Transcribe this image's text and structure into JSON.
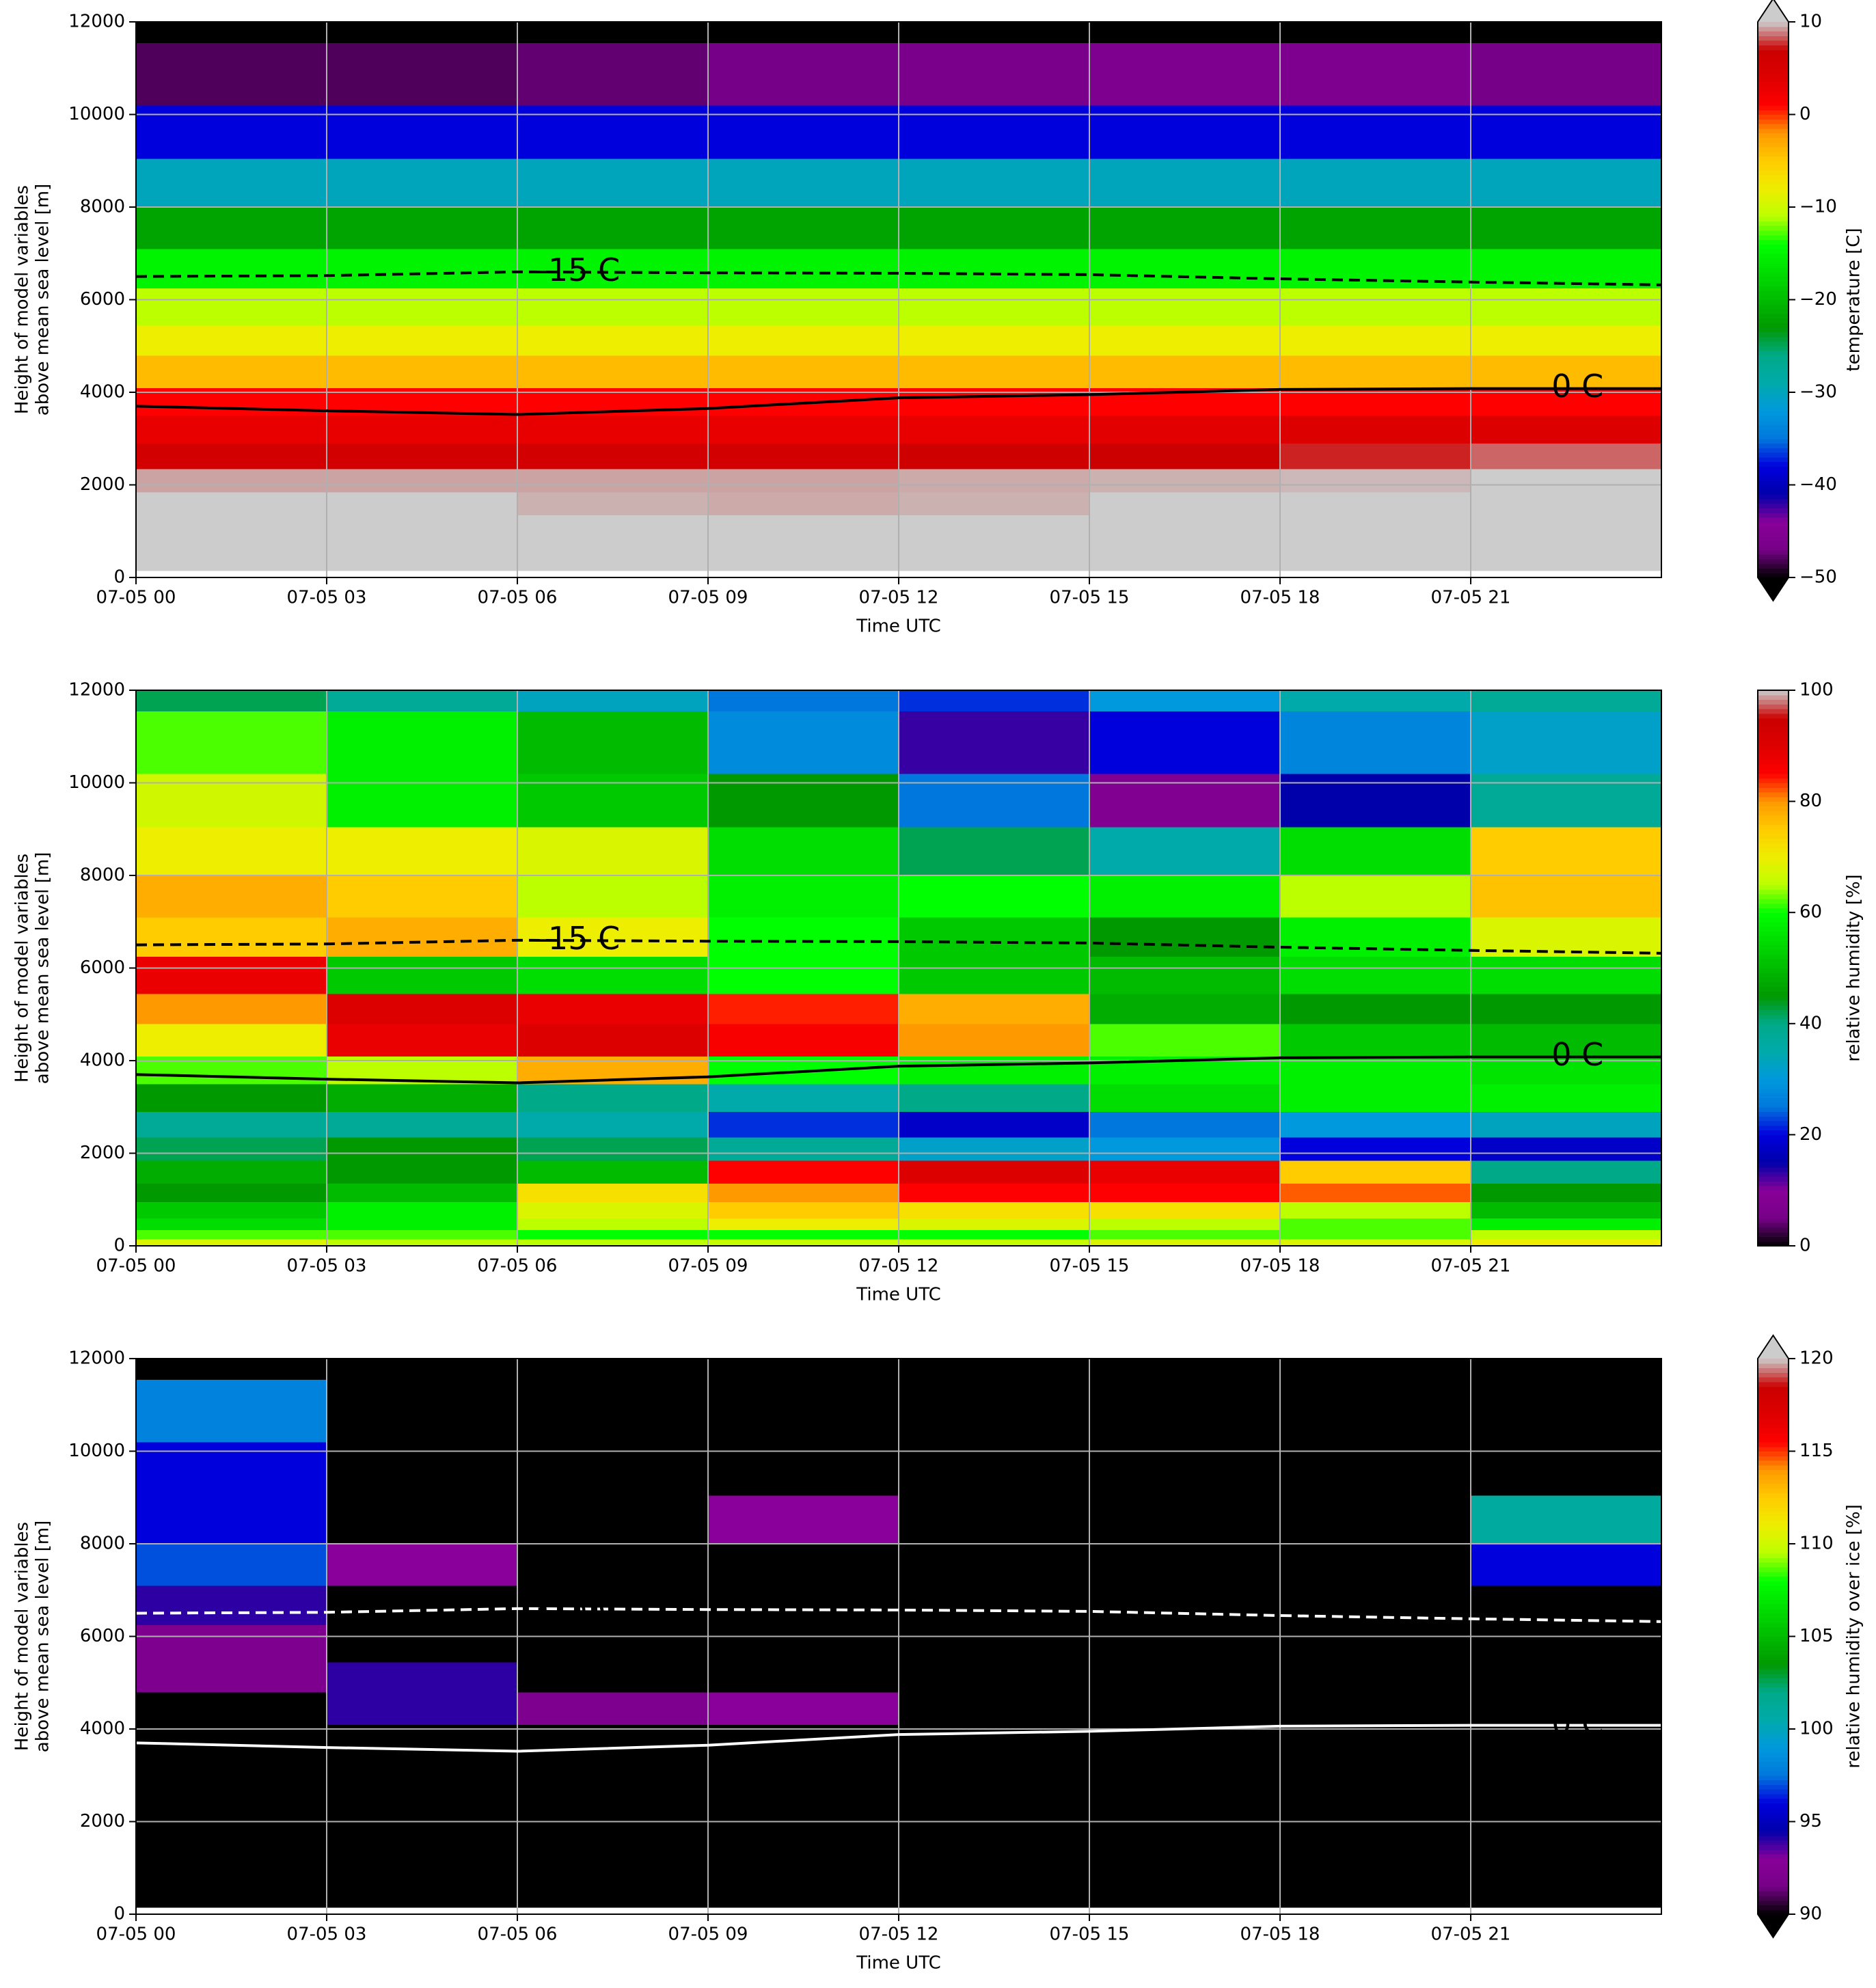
{
  "chart_data": [
    {
      "type": "heatmap",
      "colormap": "nipy_spectral",
      "clim": [
        -50,
        10
      ],
      "extend": "both",
      "over_color": "#cccccc",
      "under_color": "#000000",
      "xlabel": "Time UTC",
      "ylabel": [
        "Height of model variables",
        "above mean sea level [m]"
      ],
      "colorbar_label": "temperature [C]",
      "xlim": [
        0,
        24
      ],
      "ylim": [
        0,
        12000
      ],
      "grid": true,
      "xticks": [
        {
          "value": 0,
          "label": "07-05 00"
        },
        {
          "value": 3,
          "label": "07-05 03"
        },
        {
          "value": 6,
          "label": "07-05 06"
        },
        {
          "value": 9,
          "label": "07-05 09"
        },
        {
          "value": 12,
          "label": "07-05 12"
        },
        {
          "value": 15,
          "label": "07-05 15"
        },
        {
          "value": 18,
          "label": "07-05 18"
        },
        {
          "value": 21,
          "label": "07-05 21"
        }
      ],
      "yticks": [
        0,
        2000,
        4000,
        6000,
        8000,
        10000,
        12000
      ],
      "colorbar_ticks": [
        10,
        0,
        {
          "value": -10,
          "label": "−10"
        },
        {
          "value": -20,
          "label": "−20"
        },
        {
          "value": -30,
          "label": "−30"
        },
        {
          "value": -40,
          "label": "−40"
        },
        {
          "value": -50,
          "label": "−50"
        }
      ],
      "x_edges": [
        0,
        3,
        6,
        9,
        12,
        15,
        18,
        21,
        24
      ],
      "y_edges": [
        0,
        150,
        350,
        600,
        950,
        1350,
        1850,
        2350,
        2900,
        3500,
        4100,
        4800,
        5450,
        6250,
        7100,
        8000,
        9050,
        10200,
        11550,
        12000
      ],
      "values": [
        [
          null,
          null,
          null,
          null,
          null,
          null,
          null,
          null
        ],
        [
          15,
          15,
          15,
          15,
          15,
          15,
          15,
          15
        ],
        [
          15,
          15,
          15,
          15,
          15,
          15,
          15,
          15
        ],
        [
          15,
          15,
          15,
          15,
          15,
          15,
          15,
          15
        ],
        [
          15,
          15,
          15,
          15,
          15,
          15,
          15,
          15
        ],
        [
          15,
          15,
          9.6,
          9.5,
          9.6,
          15,
          15,
          15
        ],
        [
          9.4,
          9.4,
          9.4,
          9.4,
          9.5,
          9.6,
          9.7,
          15
        ],
        [
          6,
          6,
          6,
          6,
          6.5,
          7,
          7.5,
          8.5
        ],
        [
          3,
          3,
          3,
          3,
          3,
          3.5,
          4,
          4
        ],
        [
          1,
          1,
          1,
          1,
          1,
          1,
          1,
          1
        ],
        [
          -4,
          -4,
          -4,
          -4,
          -4,
          -4,
          -4,
          -4
        ],
        [
          -8,
          -8,
          -8,
          -8,
          -8,
          -8,
          -8,
          -8
        ],
        [
          -11,
          -11,
          -11,
          -11,
          -11,
          -11,
          -11,
          -11
        ],
        [
          -15,
          -15,
          -15,
          -15,
          -15,
          -15,
          -15,
          -15
        ],
        [
          -22,
          -22,
          -22,
          -22,
          -22,
          -22,
          -22,
          -22
        ],
        [
          -30,
          -30,
          -30,
          -30,
          -30,
          -30,
          -30,
          -30
        ],
        [
          -38,
          -38,
          -38,
          -38,
          -38,
          -38,
          -38,
          -38
        ],
        [
          -48,
          -48,
          -47.5,
          -47,
          -46.5,
          -46,
          -46,
          -47
        ],
        [
          -52,
          -52,
          -52,
          -52,
          -52,
          -52,
          -52,
          -52
        ]
      ],
      "contours": [
        {
          "label": "-15 C",
          "linestyle": "dashed",
          "color": "#000000",
          "x": [
            0,
            3,
            6,
            9,
            12,
            15,
            18,
            21,
            24
          ],
          "y": [
            6500,
            6520,
            6600,
            6580,
            6570,
            6540,
            6450,
            6380,
            6320
          ]
        },
        {
          "label": "0 C",
          "linestyle": "solid",
          "color": "#000000",
          "x": [
            0,
            3,
            6,
            9,
            12,
            15,
            18,
            21,
            24
          ],
          "y": [
            3700,
            3600,
            3520,
            3650,
            3880,
            3950,
            4060,
            4080,
            4080
          ]
        }
      ]
    },
    {
      "type": "heatmap",
      "colormap": "nipy_spectral",
      "clim": [
        0,
        100
      ],
      "xlabel": "Time UTC",
      "ylabel": [
        "Height of model variables",
        "above mean sea level [m]"
      ],
      "colorbar_label": "relative humidity [%]",
      "xlim": [
        0,
        24
      ],
      "ylim": [
        0,
        12000
      ],
      "grid": true,
      "xticks": [
        {
          "value": 0,
          "label": "07-05 00"
        },
        {
          "value": 3,
          "label": "07-05 03"
        },
        {
          "value": 6,
          "label": "07-05 06"
        },
        {
          "value": 9,
          "label": "07-05 09"
        },
        {
          "value": 12,
          "label": "07-05 12"
        },
        {
          "value": 15,
          "label": "07-05 15"
        },
        {
          "value": 18,
          "label": "07-05 18"
        },
        {
          "value": 21,
          "label": "07-05 21"
        }
      ],
      "yticks": [
        0,
        2000,
        4000,
        6000,
        8000,
        10000,
        12000
      ],
      "colorbar_ticks": [
        100,
        80,
        60,
        40,
        20,
        0
      ],
      "x_edges": [
        0,
        3,
        6,
        9,
        12,
        15,
        18,
        21,
        24
      ],
      "y_edges": [
        0,
        150,
        350,
        600,
        950,
        1350,
        1850,
        2350,
        2900,
        3500,
        4100,
        4800,
        5450,
        6250,
        7100,
        8000,
        9050,
        10200,
        11550,
        12000
      ],
      "values": [
        [
          68,
          65,
          65,
          66,
          66,
          68,
          68,
          70
        ],
        [
          62,
          62,
          60,
          60,
          60,
          62,
          62,
          65
        ],
        [
          55,
          58,
          65,
          70,
          68,
          65,
          62,
          58
        ],
        [
          52,
          58,
          68,
          75,
          72,
          72,
          65,
          50
        ],
        [
          45,
          50,
          72,
          80,
          85,
          85,
          82,
          45
        ],
        [
          48,
          45,
          50,
          85,
          90,
          88,
          75,
          40
        ],
        [
          42,
          45,
          42,
          38,
          32,
          30,
          20,
          18
        ],
        [
          38,
          38,
          35,
          22,
          18,
          25,
          30,
          33
        ],
        [
          45,
          48,
          40,
          35,
          40,
          55,
          58,
          58
        ],
        [
          62,
          65,
          78,
          60,
          58,
          58,
          58,
          56
        ],
        [
          70,
          88,
          90,
          86,
          80,
          62,
          52,
          50
        ],
        [
          80,
          90,
          88,
          84,
          78,
          48,
          45,
          45
        ],
        [
          88,
          52,
          55,
          60,
          52,
          50,
          55,
          55
        ],
        [
          75,
          78,
          70,
          60,
          52,
          45,
          58,
          68
        ],
        [
          78,
          75,
          65,
          58,
          60,
          58,
          65,
          76
        ],
        [
          70,
          70,
          68,
          55,
          42,
          35,
          55,
          75
        ],
        [
          67,
          58,
          52,
          45,
          25,
          8,
          15,
          38
        ],
        [
          62,
          58,
          50,
          28,
          13,
          20,
          27,
          32
        ],
        [
          42,
          38,
          33,
          25,
          22,
          30,
          35,
          38
        ]
      ],
      "contours": [
        {
          "label": "-15 C",
          "linestyle": "dashed",
          "color": "#000000",
          "x": [
            0,
            3,
            6,
            9,
            12,
            15,
            18,
            21,
            24
          ],
          "y": [
            6500,
            6520,
            6600,
            6580,
            6570,
            6540,
            6450,
            6380,
            6320
          ]
        },
        {
          "label": "0 C",
          "linestyle": "solid",
          "color": "#000000",
          "x": [
            0,
            3,
            6,
            9,
            12,
            15,
            18,
            21,
            24
          ],
          "y": [
            3700,
            3600,
            3520,
            3650,
            3880,
            3950,
            4060,
            4080,
            4080
          ]
        }
      ]
    },
    {
      "type": "heatmap",
      "colormap": "nipy_spectral",
      "clim": [
        90,
        120
      ],
      "extend": "both",
      "over_color": "#cccccc",
      "under_color": "#000000",
      "xlabel": "Time UTC",
      "ylabel": [
        "Height of model variables",
        "above mean sea level [m]"
      ],
      "colorbar_label": "relative humidity over ice [%]",
      "xlim": [
        0,
        24
      ],
      "ylim": [
        0,
        12000
      ],
      "grid": true,
      "xticks": [
        {
          "value": 0,
          "label": "07-05 00"
        },
        {
          "value": 3,
          "label": "07-05 03"
        },
        {
          "value": 6,
          "label": "07-05 06"
        },
        {
          "value": 9,
          "label": "07-05 09"
        },
        {
          "value": 12,
          "label": "07-05 12"
        },
        {
          "value": 15,
          "label": "07-05 15"
        },
        {
          "value": 18,
          "label": "07-05 18"
        },
        {
          "value": 21,
          "label": "07-05 21"
        }
      ],
      "yticks": [
        0,
        2000,
        4000,
        6000,
        8000,
        10000,
        12000
      ],
      "colorbar_ticks": [
        120,
        115,
        110,
        105,
        100,
        95,
        90
      ],
      "x_edges": [
        0,
        3,
        6,
        9,
        12,
        15,
        18,
        21,
        24
      ],
      "y_edges": [
        0,
        150,
        350,
        600,
        950,
        1350,
        1850,
        2350,
        2900,
        3500,
        4100,
        4800,
        5450,
        6250,
        7100,
        8000,
        9050,
        10200,
        11550,
        12000
      ],
      "values": [
        [
          null,
          null,
          null,
          null,
          null,
          null,
          null,
          null
        ],
        [
          80,
          80,
          80,
          80,
          80,
          80,
          80,
          80
        ],
        [
          80,
          80,
          80,
          80,
          80,
          80,
          80,
          80
        ],
        [
          80,
          80,
          80,
          80,
          80,
          80,
          80,
          80
        ],
        [
          80,
          80,
          80,
          80,
          80,
          80,
          80,
          80
        ],
        [
          80,
          80,
          80,
          80,
          80,
          80,
          80,
          80
        ],
        [
          80,
          80,
          80,
          80,
          80,
          80,
          80,
          80
        ],
        [
          80,
          80,
          80,
          80,
          80,
          80,
          80,
          80
        ],
        [
          80,
          80,
          80,
          80,
          80,
          80,
          80,
          80
        ],
        [
          80,
          80,
          80,
          80,
          80,
          80,
          80,
          80
        ],
        [
          80,
          94,
          92,
          93,
          80,
          80,
          80,
          80
        ],
        [
          92,
          94,
          80,
          80,
          80,
          80,
          80,
          80
        ],
        [
          92,
          80,
          80,
          80,
          80,
          80,
          80,
          80
        ],
        [
          94,
          80,
          80,
          80,
          80,
          80,
          80,
          80
        ],
        [
          97,
          93,
          80,
          80,
          80,
          80,
          80,
          96
        ],
        [
          96,
          80,
          80,
          93,
          80,
          80,
          80,
          101
        ],
        [
          96,
          80,
          80,
          80,
          80,
          80,
          80,
          80
        ],
        [
          98,
          80,
          80,
          80,
          80,
          80,
          80,
          80
        ],
        [
          80,
          80,
          80,
          80,
          80,
          80,
          80,
          80
        ]
      ],
      "contours": [
        {
          "label": "-15 C",
          "linestyle": "dashed",
          "color": "#ffffff",
          "x": [
            0,
            3,
            6,
            9,
            12,
            15,
            18,
            21,
            24
          ],
          "y": [
            6500,
            6520,
            6600,
            6580,
            6570,
            6540,
            6450,
            6380,
            6320
          ]
        },
        {
          "label": "0 C",
          "linestyle": "solid",
          "color": "#ffffff",
          "x": [
            0,
            3,
            6,
            9,
            12,
            15,
            18,
            21,
            24
          ],
          "y": [
            3700,
            3600,
            3520,
            3650,
            3880,
            3950,
            4060,
            4080,
            4080
          ]
        }
      ]
    }
  ]
}
